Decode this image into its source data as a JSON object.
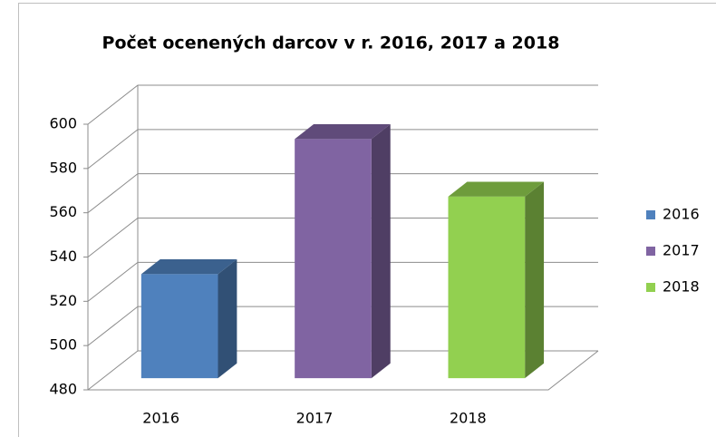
{
  "chart_data": {
    "type": "bar3d",
    "title": "Počet ocenených darcov v r. 2016, 2017 a 2018",
    "categories": [
      "2016",
      "2017",
      "2018"
    ],
    "series": [
      {
        "name": "2016",
        "color": "#4f81bd",
        "values": [
          527,
          null,
          null
        ]
      },
      {
        "name": "2017",
        "color": "#8064a2",
        "values": [
          null,
          588,
          null
        ]
      },
      {
        "name": "2018",
        "color": "#92d050",
        "values": [
          null,
          null,
          562
        ]
      }
    ],
    "ylim": [
      480,
      600
    ],
    "yticks": [
      480,
      500,
      520,
      540,
      560,
      580,
      600
    ],
    "grid": true,
    "legend": "right"
  }
}
